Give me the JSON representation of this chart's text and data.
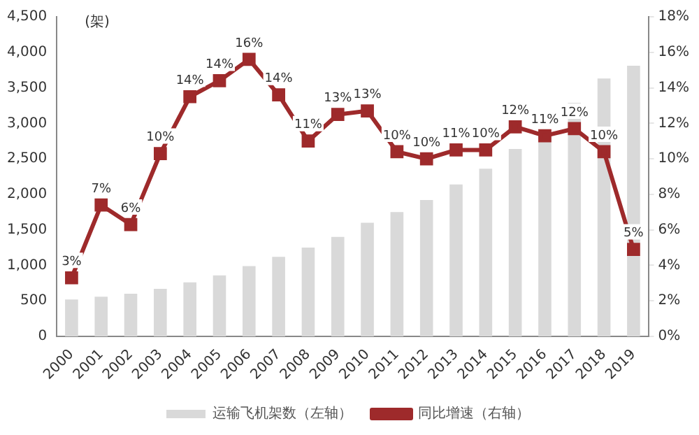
{
  "chart_data": {
    "type": "bar",
    "ylabel": "(架)",
    "categories": [
      "2000",
      "2001",
      "2002",
      "2003",
      "2004",
      "2005",
      "2006",
      "2007",
      "2008",
      "2009",
      "2010",
      "2011",
      "2012",
      "2013",
      "2014",
      "2015",
      "2016",
      "2017",
      "2018",
      "2019"
    ],
    "series": [
      {
        "name": "运输飞机架数（左轴）",
        "color": "#d9d9d9",
        "values": [
          520,
          560,
          600,
          670,
          760,
          860,
          990,
          1120,
          1250,
          1400,
          1600,
          1750,
          1920,
          2140,
          2360,
          2640,
          2860,
          3290,
          3630,
          3810
        ]
      },
      {
        "name": "同比增速（右轴）",
        "type": "line",
        "axis": "y2",
        "color": "#9e2a2b",
        "marker": "square",
        "values": [
          3.3,
          7.4,
          6.3,
          10.3,
          13.5,
          14.4,
          15.6,
          13.6,
          11.0,
          12.5,
          12.7,
          10.4,
          10.0,
          10.5,
          10.5,
          11.8,
          11.3,
          11.7,
          10.4,
          4.9
        ],
        "value_labels": [
          "3%",
          "7%",
          "6%",
          "10%",
          "14%",
          "14%",
          "16%",
          "14%",
          "11%",
          "13%",
          "13%",
          "10%",
          "10%",
          "11%",
          "10%",
          "12%",
          "11%",
          "12%",
          "10%",
          "5%"
        ]
      }
    ],
    "ylim": [
      0,
      4500
    ],
    "yticks": [
      {
        "value": 0,
        "label": "0"
      },
      {
        "value": 500,
        "label": "500"
      },
      {
        "value": 1000,
        "label": "1,000"
      },
      {
        "value": 1500,
        "label": "1,500"
      },
      {
        "value": 2000,
        "label": "2,000"
      },
      {
        "value": 2500,
        "label": "2,500"
      },
      {
        "value": 3000,
        "label": "3,000"
      },
      {
        "value": 3500,
        "label": "3,500"
      },
      {
        "value": 4000,
        "label": "4,000"
      },
      {
        "value": 4500,
        "label": "4,500"
      }
    ],
    "y2lim": [
      0,
      18
    ],
    "y2ticks": [
      {
        "value": 0,
        "label": "0%"
      },
      {
        "value": 2,
        "label": "2%"
      },
      {
        "value": 4,
        "label": "4%"
      },
      {
        "value": 6,
        "label": "6%"
      },
      {
        "value": 8,
        "label": "8%"
      },
      {
        "value": 10,
        "label": "10%"
      },
      {
        "value": 12,
        "label": "12%"
      },
      {
        "value": 14,
        "label": "14%"
      },
      {
        "value": 16,
        "label": "16%"
      },
      {
        "value": 18,
        "label": "18%"
      }
    ],
    "grid": false,
    "legend": "bottom"
  }
}
